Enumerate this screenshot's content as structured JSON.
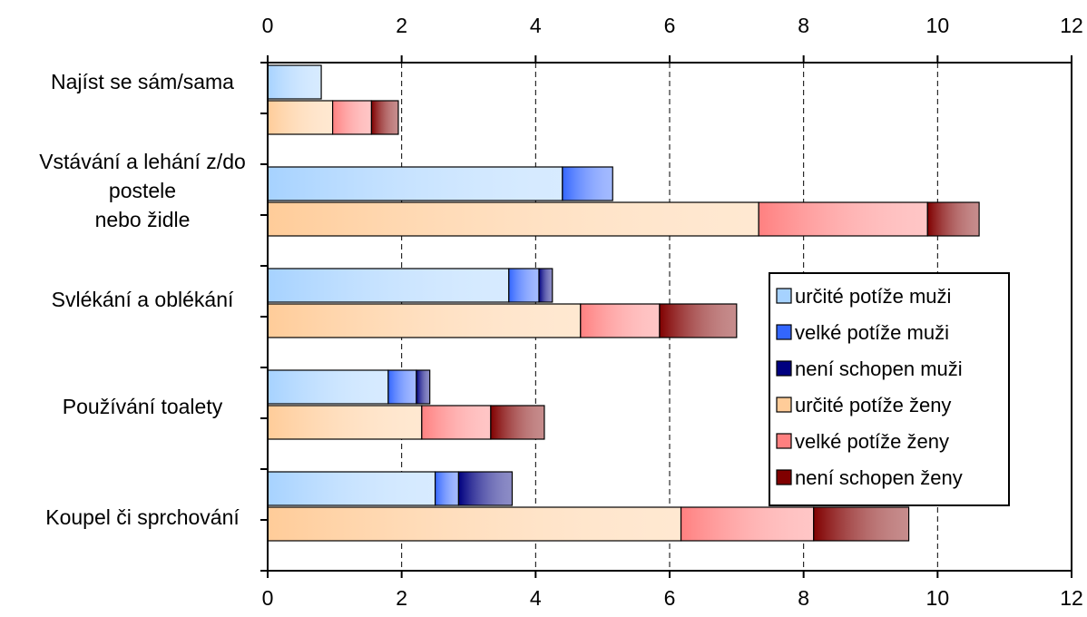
{
  "chart_data": {
    "type": "bar",
    "orientation": "horizontal",
    "stacked": true,
    "categories": [
      [
        "Najíst se sám/sama"
      ],
      [
        "Vstávání a lehání z/do",
        "postele",
        "nebo židle"
      ],
      [
        "Svlékání a oblékání"
      ],
      [
        "Používání toalety"
      ],
      [
        "Koupel či sprchování"
      ]
    ],
    "groups": [
      {
        "name": "muži",
        "series": [
          {
            "name": "určité potíže muži",
            "color": "#a6d2ff",
            "values": [
              0.8,
              4.4,
              3.6,
              1.8,
              2.5
            ]
          },
          {
            "name": "velké potíže muži",
            "color": "#3366ff",
            "values": [
              0.0,
              0.75,
              0.45,
              0.42,
              0.35
            ]
          },
          {
            "name": "není schopen muži",
            "color": "#000080",
            "values": [
              0.0,
              0.0,
              0.2,
              0.2,
              0.8
            ]
          }
        ]
      },
      {
        "name": "ženy",
        "series": [
          {
            "name": "určité potíže ženy",
            "color": "#ffcc99",
            "values": [
              0.97,
              7.33,
              4.67,
              2.3,
              6.17
            ]
          },
          {
            "name": "velké potíže ženy",
            "color": "#ff8080",
            "values": [
              0.58,
              2.52,
              1.18,
              1.03,
              1.98
            ]
          },
          {
            "name": "není schopen ženy",
            "color": "#800000",
            "values": [
              0.4,
              0.77,
              1.15,
              0.8,
              1.42
            ]
          }
        ]
      }
    ],
    "xlim": [
      0,
      12
    ],
    "xticks": [
      0,
      2,
      4,
      6,
      8,
      10,
      12
    ],
    "tick_labels": [
      "0",
      "2",
      "4",
      "6",
      "8",
      "10",
      "12"
    ],
    "grid": "vertical dashed",
    "axis_labels_top_and_bottom": true,
    "legend": {
      "position": "right-middle",
      "entries": [
        "určité potíže muži",
        "velké potíže muži",
        "není schopen muži",
        "určité potíže ženy",
        "velké potíže ženy",
        "není schopen ženy"
      ],
      "colors": [
        "#a6d2ff",
        "#3366ff",
        "#000080",
        "#ffcc99",
        "#ff8080",
        "#800000"
      ]
    }
  }
}
